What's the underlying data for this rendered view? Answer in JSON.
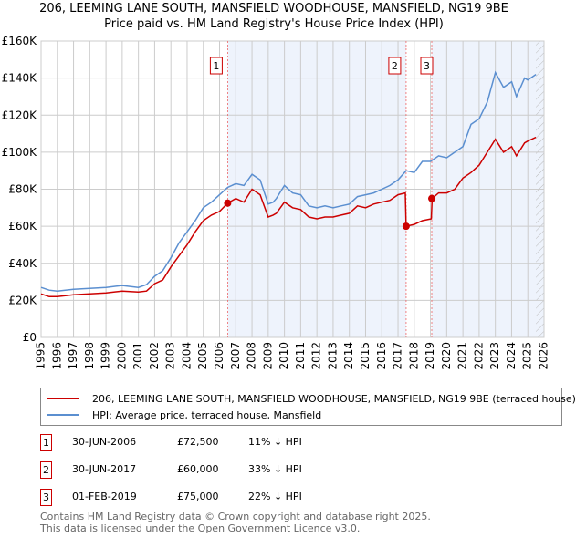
{
  "title_line1": "206, LEEMING LANE SOUTH, MANSFIELD WOODHOUSE, MANSFIELD, NG19 9BE",
  "title_line2": "Price paid vs. HM Land Registry's House Price Index (HPI)",
  "colors": {
    "property": "#cc0000",
    "hpi": "#5b8fd0",
    "shade": "#eef3fc",
    "grid": "#cccccc"
  },
  "chart_data": {
    "type": "line",
    "title": "206, LEEMING LANE SOUTH, MANSFIELD WOODHOUSE, MANSFIELD, NG19 9BE — Price paid vs. HM Land Registry's House Price Index (HPI)",
    "xlim": [
      1995,
      2026
    ],
    "ylim": [
      0,
      160000
    ],
    "x_ticks": [
      "1995",
      "1996",
      "1997",
      "1998",
      "1999",
      "2000",
      "2001",
      "2002",
      "2003",
      "2004",
      "2005",
      "2006",
      "2007",
      "2008",
      "2009",
      "2010",
      "2011",
      "2012",
      "2013",
      "2014",
      "2015",
      "2016",
      "2017",
      "2018",
      "2019",
      "2020",
      "2021",
      "2022",
      "2023",
      "2024",
      "2025",
      "2026"
    ],
    "y_ticks": [
      {
        "v": 0,
        "label": "£0"
      },
      {
        "v": 20000,
        "label": "£20K"
      },
      {
        "v": 40000,
        "label": "£40K"
      },
      {
        "v": 60000,
        "label": "£60K"
      },
      {
        "v": 80000,
        "label": "£80K"
      },
      {
        "v": 100000,
        "label": "£100K"
      },
      {
        "v": 120000,
        "label": "£120K"
      },
      {
        "v": 140000,
        "label": "£140K"
      },
      {
        "v": 160000,
        "label": "£160K"
      }
    ],
    "shaded_ranges": [
      [
        2006.5,
        2017.5
      ],
      [
        2019.08,
        2026
      ]
    ],
    "hatch_from": 2025.5,
    "series": [
      {
        "name": "206, LEEMING LANE SOUTH, MANSFIELD WOODHOUSE, MANSFIELD, NG19 9BE (terraced house)",
        "color": "#cc0000",
        "x": [
          1995,
          1995.5,
          1996,
          1997,
          1998,
          1999,
          2000,
          2001,
          2001.5,
          2002,
          2002.5,
          2003,
          2003.5,
          2004,
          2004.5,
          2005,
          2005.5,
          2006,
          2006.5,
          2007,
          2007.5,
          2008,
          2008.5,
          2009,
          2009.3,
          2009.5,
          2010,
          2010.5,
          2011,
          2011.5,
          2012,
          2012.5,
          2013,
          2013.5,
          2014,
          2014.5,
          2015,
          2015.5,
          2016,
          2016.5,
          2017,
          2017.45,
          2017.5,
          2018,
          2018.5,
          2019.05,
          2019.1,
          2019.5,
          2020,
          2020.5,
          2021,
          2021.5,
          2022,
          2022.5,
          2023,
          2023.5,
          2024,
          2024.3,
          2024.8,
          2025,
          2025.5
        ],
        "y": [
          23500,
          22000,
          22000,
          23000,
          23500,
          24000,
          25000,
          24500,
          25000,
          29000,
          31000,
          38000,
          44000,
          50000,
          57000,
          63000,
          66000,
          68000,
          72500,
          75000,
          73000,
          80000,
          77000,
          65000,
          66000,
          67000,
          73000,
          70000,
          69000,
          65000,
          64000,
          65000,
          65000,
          66000,
          67000,
          71000,
          70000,
          72000,
          73000,
          74000,
          77000,
          78000,
          60000,
          61000,
          63000,
          64000,
          75000,
          78000,
          78000,
          80000,
          86000,
          89000,
          93000,
          100000,
          107000,
          100000,
          103000,
          98000,
          105000,
          106000,
          108000
        ]
      },
      {
        "name": "HPI: Average price, terraced house, Mansfield",
        "color": "#5b8fd0",
        "x": [
          1995,
          1995.5,
          1996,
          1997,
          1998,
          1999,
          2000,
          2001,
          2001.5,
          2002,
          2002.5,
          2003,
          2003.5,
          2004,
          2004.5,
          2005,
          2005.5,
          2006,
          2006.5,
          2007,
          2007.5,
          2008,
          2008.5,
          2009,
          2009.3,
          2009.5,
          2010,
          2010.5,
          2011,
          2011.5,
          2012,
          2012.5,
          2013,
          2013.5,
          2014,
          2014.5,
          2015,
          2015.5,
          2016,
          2016.5,
          2017,
          2017.5,
          2018,
          2018.5,
          2019,
          2019.5,
          2020,
          2020.5,
          2021,
          2021.5,
          2022,
          2022.5,
          2023,
          2023.5,
          2024,
          2024.3,
          2024.8,
          2025,
          2025.5
        ],
        "y": [
          27000,
          25500,
          25000,
          26000,
          26500,
          27000,
          28000,
          27000,
          28500,
          33000,
          36000,
          43000,
          51000,
          57000,
          63000,
          70000,
          73000,
          77000,
          81000,
          83000,
          82000,
          88000,
          85000,
          72000,
          73000,
          75000,
          82000,
          78000,
          77000,
          71000,
          70000,
          71000,
          70000,
          71000,
          72000,
          76000,
          77000,
          78000,
          80000,
          82000,
          85000,
          90000,
          89000,
          95000,
          95000,
          98000,
          97000,
          100000,
          103000,
          115000,
          118000,
          127000,
          143000,
          135000,
          138000,
          130000,
          140000,
          139000,
          142000
        ]
      }
    ],
    "sales": [
      {
        "n": "1",
        "x": 2006.5,
        "y": 72500
      },
      {
        "n": "2",
        "x": 2017.5,
        "y": 60000
      },
      {
        "n": "3",
        "x": 2019.08,
        "y": 75000
      }
    ]
  },
  "legend": {
    "property": "206, LEEMING LANE SOUTH, MANSFIELD WOODHOUSE, MANSFIELD, NG19 9BE (terraced house)",
    "hpi": "HPI: Average price, terraced house, Mansfield"
  },
  "transactions": [
    {
      "n": "1",
      "date": "30-JUN-2006",
      "price": "£72,500",
      "delta": "11% ↓ HPI"
    },
    {
      "n": "2",
      "date": "30-JUN-2017",
      "price": "£60,000",
      "delta": "33% ↓ HPI"
    },
    {
      "n": "3",
      "date": "01-FEB-2019",
      "price": "£75,000",
      "delta": "22% ↓ HPI"
    }
  ],
  "footer": {
    "line1": "Contains HM Land Registry data © Crown copyright and database right 2025.",
    "line2": "This data is licensed under the Open Government Licence v3.0."
  }
}
